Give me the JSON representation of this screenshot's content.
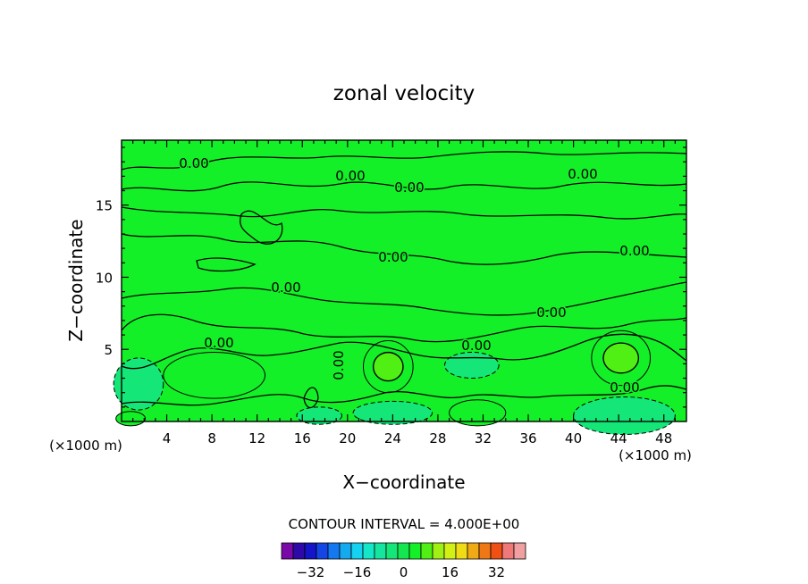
{
  "chart_data": {
    "type": "heatmap",
    "title": "zonal velocity",
    "xlabel": "X−coordinate",
    "ylabel": "Z−coordinate",
    "x_unit_left": "(×1000 m)",
    "x_unit_right": "(×1000 m)",
    "xlim": [
      0,
      50
    ],
    "ylim": [
      0,
      19.5
    ],
    "x_ticks": [
      4,
      8,
      12,
      16,
      20,
      24,
      28,
      32,
      36,
      40,
      44,
      48
    ],
    "y_ticks": [
      5,
      10,
      15
    ],
    "contour_interval_text": "CONTOUR INTERVAL = 4.000E+00",
    "contour_label": "0.00",
    "colorbar": {
      "levels": [
        -40,
        -36,
        -32,
        -28,
        -24,
        -20,
        -16,
        -12,
        -8,
        -4,
        0,
        4,
        8,
        12,
        16,
        20,
        24,
        28,
        32,
        36,
        40
      ],
      "colors": [
        "#7a0aa8",
        "#2d0aa8",
        "#1414c8",
        "#1446e6",
        "#1478f0",
        "#14aaf0",
        "#14d2f0",
        "#14e6c8",
        "#14e6a0",
        "#14e678",
        "#14e650",
        "#14f028",
        "#50f014",
        "#a0f014",
        "#d2f014",
        "#f0dc14",
        "#f0aa14",
        "#f07814",
        "#f05014",
        "#f07878",
        "#f0a0a0"
      ],
      "tick_labels": [
        "−32",
        "−16",
        "0",
        "16",
        "32"
      ],
      "tick_values": [
        -32,
        -16,
        0,
        16,
        32
      ]
    },
    "background_color": "#14f028",
    "regions": [
      {
        "kind": "positive",
        "level": 8,
        "cx": 44.2,
        "cz": 4.4,
        "rx": 2.6,
        "rz": 1.9
      },
      {
        "kind": "positive",
        "level": 8,
        "cx": 23.6,
        "cz": 3.8,
        "rx": 2.2,
        "rz": 1.8
      },
      {
        "kind": "positive",
        "level": 4,
        "cx": 8.2,
        "cz": 3.2,
        "rx": 4.5,
        "rz": 1.6
      },
      {
        "kind": "positive",
        "level": 4,
        "cx": 31.5,
        "cz": 0.6,
        "rx": 2.5,
        "rz": 0.9
      },
      {
        "kind": "positive",
        "level": 4,
        "cx": 0.8,
        "cz": 0.2,
        "rx": 1.3,
        "rz": 0.5
      },
      {
        "kind": "negative",
        "level": -4,
        "cx": 44.5,
        "cz": 0.4,
        "rx": 4.5,
        "rz": 1.3
      },
      {
        "kind": "negative",
        "level": -4,
        "cx": 1.5,
        "cz": 2.6,
        "rx": 2.2,
        "rz": 1.8
      },
      {
        "kind": "negative",
        "level": -4,
        "cx": 31.0,
        "cz": 3.9,
        "rx": 2.4,
        "rz": 0.9
      },
      {
        "kind": "negative",
        "level": -4,
        "cx": 24.0,
        "cz": 0.6,
        "rx": 3.5,
        "rz": 0.8
      },
      {
        "kind": "negative",
        "level": -4,
        "cx": 17.5,
        "cz": 0.4,
        "rx": 2.0,
        "rz": 0.6
      }
    ]
  }
}
